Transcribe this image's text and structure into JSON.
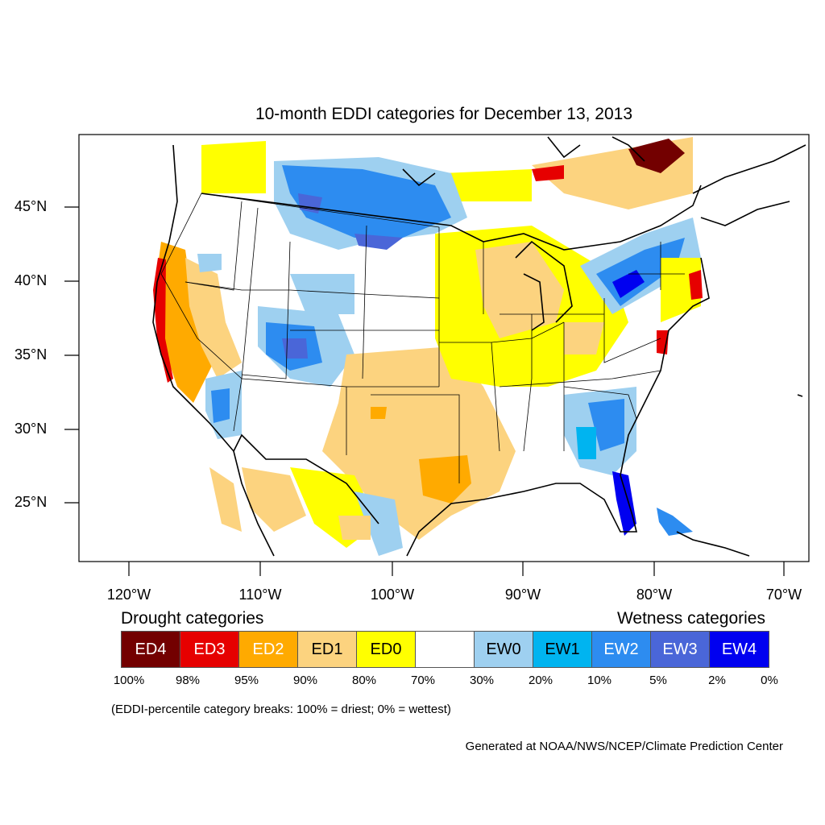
{
  "title": "10-month EDDI categories for December 13, 2013",
  "latitude_labels": [
    "45°N",
    "40°N",
    "35°N",
    "30°N",
    "25°N"
  ],
  "longitude_labels": [
    "120°W",
    "110°W",
    "100°W",
    "90°W",
    "80°W",
    "70°W"
  ],
  "legend": {
    "drought_heading": "Drought categories",
    "wetness_heading": "Wetness categories",
    "categories": [
      {
        "label": "ED4",
        "color": "#730000",
        "text_color": "#ffffff"
      },
      {
        "label": "ED3",
        "color": "#e60000",
        "text_color": "#ffffff"
      },
      {
        "label": "ED2",
        "color": "#ffaa00",
        "text_color": "#ffffff"
      },
      {
        "label": "ED1",
        "color": "#fcd37f",
        "text_color": "#000000"
      },
      {
        "label": "ED0",
        "color": "#ffff00",
        "text_color": "#000000"
      },
      {
        "label": "",
        "color": "#ffffff",
        "text_color": "#000000"
      },
      {
        "label": "EW0",
        "color": "#9ed0f0",
        "text_color": "#000000"
      },
      {
        "label": "EW1",
        "color": "#00b4f0",
        "text_color": "#000000"
      },
      {
        "label": "EW2",
        "color": "#2d8cf0",
        "text_color": "#ffffff"
      },
      {
        "label": "EW3",
        "color": "#4a66d8",
        "text_color": "#ffffff"
      },
      {
        "label": "EW4",
        "color": "#0000f0",
        "text_color": "#ffffff"
      }
    ],
    "percentiles": [
      "100%",
      "98%",
      "95%",
      "90%",
      "80%",
      "70%",
      "30%",
      "20%",
      "10%",
      "5%",
      "2%",
      "0%"
    ]
  },
  "note": "(EDDI-percentile category breaks: 100% = driest; 0% = wettest)",
  "credit": "Generated at NOAA/NWS/NCEP/Climate Prediction Center"
}
